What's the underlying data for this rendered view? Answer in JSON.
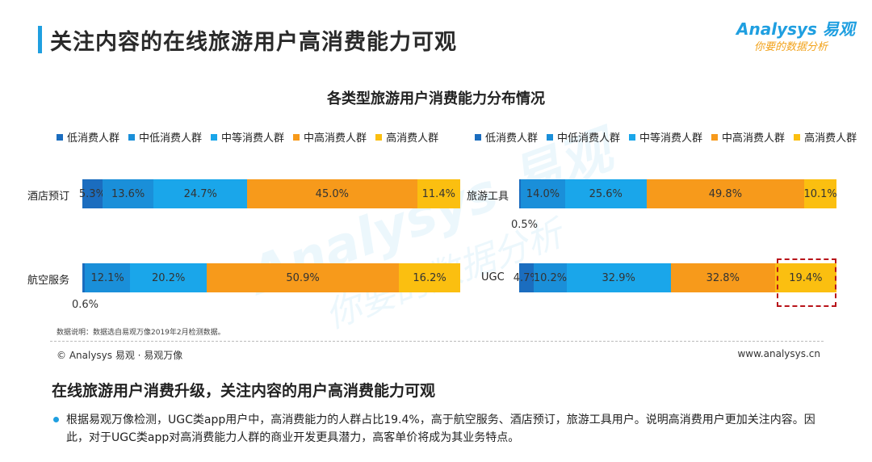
{
  "header": {
    "title": "关注内容的在线旅游用户高消费能力可观",
    "logo_main": "Analysys 易观",
    "logo_sub": "你要的数据分析"
  },
  "watermark": {
    "main": "Analysys 易观",
    "sub": "你要的数据分析"
  },
  "chart_data": {
    "type": "bar",
    "orientation": "horizontal",
    "stacked": true,
    "normalized": true,
    "title": "各类型旅游用户消费能力分布情况",
    "legend": [
      "低消费人群",
      "中低消费人群",
      "中等消费人群",
      "中高消费人群",
      "高消费人群"
    ],
    "colors": [
      "#1b6dbf",
      "#1a8fd9",
      "#1aa6ea",
      "#f79a1b",
      "#fbbf10"
    ],
    "categories": [
      "酒店预订",
      "航空服务",
      "旅游工具",
      "UGC"
    ],
    "series": [
      {
        "name": "低消费人群",
        "values": [
          5.3,
          0.6,
          0.5,
          4.7
        ]
      },
      {
        "name": "中低消费人群",
        "values": [
          13.6,
          12.1,
          14.0,
          10.2
        ]
      },
      {
        "name": "中等消费人群",
        "values": [
          24.7,
          20.2,
          25.6,
          32.9
        ]
      },
      {
        "name": "中高消费人群",
        "values": [
          45.0,
          50.9,
          49.8,
          32.8
        ]
      },
      {
        "name": "高消费人群",
        "values": [
          11.4,
          16.2,
          10.1,
          19.4
        ]
      }
    ],
    "labels": [
      [
        "5.3%",
        "13.6%",
        "24.7%",
        "45.0%",
        "11.4%"
      ],
      [
        "0.6%",
        "12.1%",
        "20.2%",
        "50.9%",
        "16.2%"
      ],
      [
        "0.5%",
        "14.0%",
        "25.6%",
        "49.8%",
        "10.1%"
      ],
      [
        "4.7%",
        "10.2%",
        "32.9%",
        "32.8%",
        "19.4%"
      ]
    ],
    "highlight": {
      "category": "UGC",
      "series": "高消费人群"
    }
  },
  "footer": {
    "note": "数据说明：数据选自易观万像2019年2月检测数据。",
    "copyright": "© Analysys 易观 · 易观万像",
    "website": "www.analysys.cn"
  },
  "summary": {
    "title": "在线旅游用户消费升级，关注内容的用户高消费能力可观",
    "bullet": "根据易观万像检测，UGC类app用户中，高消费能力的人群占比19.4%，高于航空服务、酒店预订，旅游工具用户。说明高消费用户更加关注内容。因此，对于UGC类app对高消费能力人群的商业开发更具潜力，高客单价将成为其业务特点。"
  }
}
